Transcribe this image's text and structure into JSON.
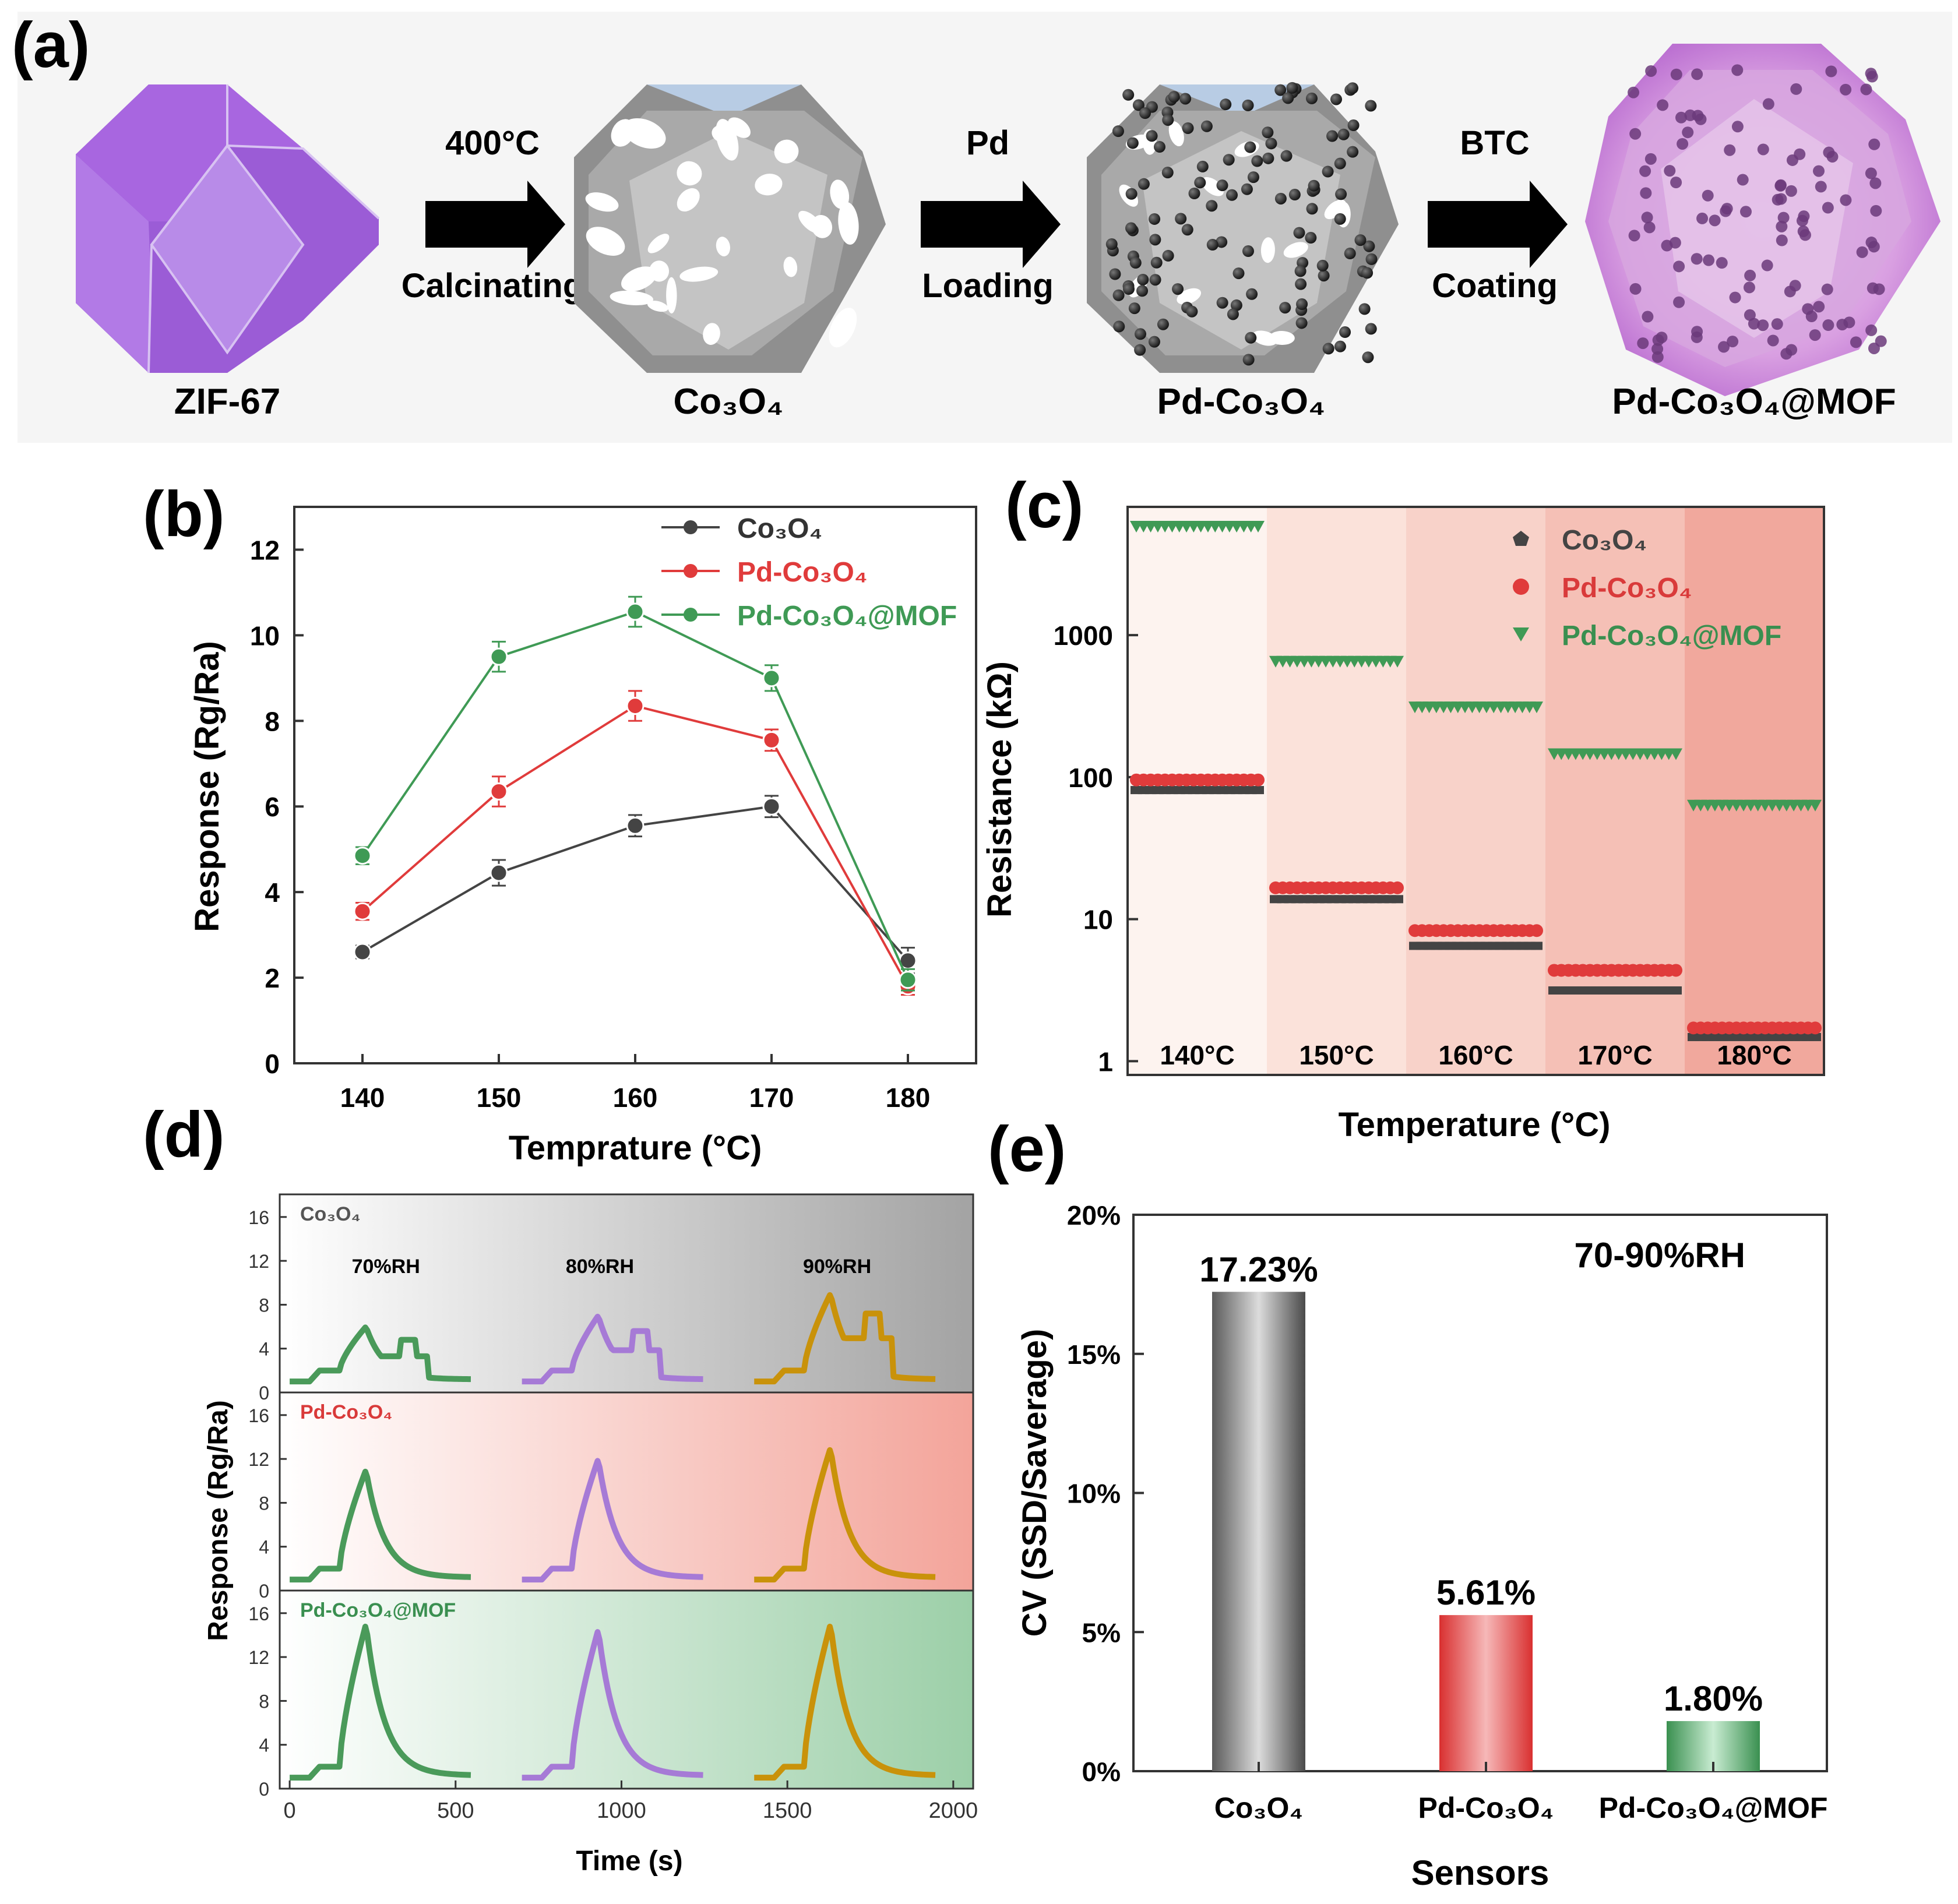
{
  "panel_labels": {
    "a": "(a)",
    "b": "(b)",
    "c": "(c)",
    "d": "(d)",
    "e": "(e)"
  },
  "colors": {
    "co3o4": "#444444",
    "pd": "#e03b3b",
    "mof": "#3f9a55",
    "pd_text": "#d93a3a",
    "mof_text": "#3a8f50",
    "purple": "#a866e0",
    "trace_purple": "#a67ad6",
    "trace_gold": "#c9920a",
    "trace_green": "#4a9a5a"
  },
  "synthesis": {
    "step1": {
      "label": "ZIF-67"
    },
    "step2": {
      "label": "Co₃O₄"
    },
    "step3": {
      "label": "Pd-Co₃O₄"
    },
    "step4": {
      "label": "Pd-Co₃O₄@MOF"
    },
    "arrow1": {
      "top": "400°C",
      "bottom": "Calcinating"
    },
    "arrow2": {
      "top": "Pd",
      "bottom": "Loading"
    },
    "arrow3": {
      "top": "BTC",
      "bottom": "Coating"
    }
  },
  "chart_data": [
    {
      "panel": "b",
      "type": "line",
      "xlabel": "Temprature (°C)",
      "ylabel": "Response (Rg/Ra)",
      "x": [
        140,
        150,
        160,
        170,
        180
      ],
      "xlim": [
        135,
        185
      ],
      "ylim": [
        0,
        13
      ],
      "xticks": [
        140,
        150,
        160,
        170,
        180
      ],
      "yticks": [
        0,
        2,
        4,
        6,
        8,
        10,
        12
      ],
      "series": [
        {
          "name": "Co₃O₄",
          "color": "#444444",
          "values": [
            2.6,
            4.45,
            5.55,
            6.0,
            2.4
          ],
          "err": [
            0.15,
            0.3,
            0.25,
            0.25,
            0.3
          ]
        },
        {
          "name": "Pd-Co₃O₄",
          "color": "#e03b3b",
          "values": [
            3.55,
            6.35,
            8.35,
            7.55,
            1.8
          ],
          "err": [
            0.2,
            0.35,
            0.35,
            0.25,
            0.2
          ]
        },
        {
          "name": "Pd-Co₃O₄@MOF",
          "color": "#3f9a55",
          "values": [
            4.85,
            9.5,
            10.55,
            9.0,
            1.95
          ],
          "err": [
            0.2,
            0.35,
            0.35,
            0.3,
            0.25
          ]
        }
      ]
    },
    {
      "panel": "c",
      "type": "scatter",
      "xlabel": "Temperature (°C)",
      "ylabel": "Resistance (kΩ)",
      "yscale": "log",
      "ylim": [
        0.8,
        8000
      ],
      "yticks": [
        1,
        10,
        100,
        1000
      ],
      "ytick_labels": [
        "1",
        "10",
        "100",
        "1000"
      ],
      "segments": [
        "140°C",
        "150°C",
        "160°C",
        "170°C",
        "180°C"
      ],
      "series": [
        {
          "name": "Co₃O₄",
          "color": "#444444",
          "marker": "pentagon",
          "values": [
            85,
            14.5,
            6.8,
            3.3,
            1.55
          ]
        },
        {
          "name": "Pd-Co₃O₄",
          "color": "#e03b3b",
          "marker": "circle",
          "values": [
            92,
            16,
            8.0,
            4.2,
            1.65
          ]
        },
        {
          "name": "Pd-Co₃O₄@MOF",
          "color": "#3f9a55",
          "marker": "triangle-down",
          "values": [
            5800,
            650,
            310,
            145,
            63
          ]
        }
      ]
    },
    {
      "panel": "d",
      "type": "line",
      "xlabel": "Time (s)",
      "ylabel": "Response (Rg/Ra)",
      "xlim": [
        -30,
        2060
      ],
      "ylim": [
        0,
        17
      ],
      "xticks": [
        0,
        500,
        1000,
        1500,
        2000
      ],
      "yticks": [
        0,
        4,
        8,
        12,
        16
      ],
      "extra_yticks": [
        0,
        2,
        4,
        6,
        8,
        10,
        12,
        14,
        16
      ],
      "humidity_labels": [
        "70%RH",
        "80%RH",
        "90%RH"
      ],
      "subplots": [
        {
          "name": "Co₃O₄",
          "peaks": [
            6.0,
            7.0,
            9.0
          ]
        },
        {
          "name": "Pd-Co₃O₄",
          "peaks": [
            11.0,
            12.0,
            13.0
          ]
        },
        {
          "name": "Pd-Co₃O₄@MOF",
          "peaks": [
            15.0,
            14.5,
            15.0
          ]
        }
      ]
    },
    {
      "panel": "e",
      "type": "bar",
      "title": "70-90%RH",
      "xlabel": "Sensors",
      "ylabel": "CV (SSD/Saverage)",
      "categories": [
        "Co₃O₄",
        "Pd-Co₃O₄",
        "Pd-Co₃O₄@MOF"
      ],
      "values": [
        17.23,
        5.61,
        1.8
      ],
      "value_labels": [
        "17.23%",
        "5.61%",
        "1.80%"
      ],
      "ylim": [
        0,
        20
      ],
      "yticks": [
        0,
        5,
        10,
        15,
        20
      ],
      "ytick_labels": [
        "0%",
        "5%",
        "10%",
        "15%",
        "20%"
      ]
    }
  ]
}
